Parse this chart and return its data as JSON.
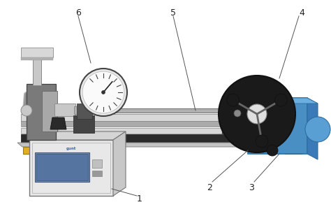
{
  "bg_color": "#ffffff",
  "rail_light": "#d8d8d8",
  "rail_mid": "#b8b8b8",
  "rail_dark": "#888888",
  "base_black": "#2a2a2a",
  "base_gray": "#c4c4c4",
  "motor_blue": "#4a8fc4",
  "motor_blue_dark": "#2e6ea0",
  "motor_blue_side": "#3a7ab8",
  "disk_black": "#1a1a1a",
  "disk_hub": "#e0e0e0",
  "chuck_gray": "#808080",
  "chuck_light": "#b0b0b0",
  "left_body": "#888888",
  "left_light": "#c0c0c0",
  "handle_gray": "#c8c8c8",
  "handle_dark": "#a0a0a0",
  "gauge_bg": "#f5f5f5",
  "gauge_border": "#444444",
  "yellow_foot": "#e0b020",
  "box_face": "#e8e8e8",
  "box_top": "#d5d5d5",
  "box_right": "#c8c8c8",
  "box_border": "#777777",
  "screen_blue": "#6090c8",
  "screen_dark": "#4070a8",
  "cable_light": "#c0c0c0",
  "cable_dark": "#909090",
  "rod_color": "#b0b0b0",
  "rod_edge": "#707070",
  "label_color": "#222222",
  "line_color": "#555555"
}
